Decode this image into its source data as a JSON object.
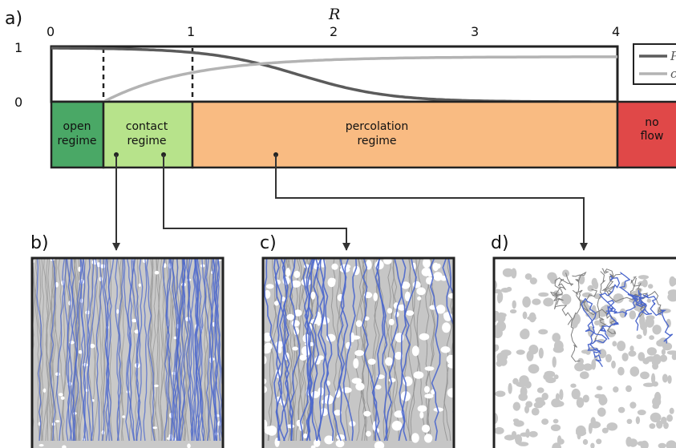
{
  "panel_labels": {
    "a": "a)",
    "b": "b)",
    "c": "c)",
    "d": "d)"
  },
  "axis": {
    "variable": "R",
    "x_ticks": [
      "0",
      "1",
      "2",
      "3",
      "4"
    ],
    "y_ticks": {
      "top": "1",
      "bottom": "0"
    }
  },
  "regimes": {
    "open": [
      "open",
      "regime"
    ],
    "contact": [
      "contact",
      "regime"
    ],
    "percolation": [
      "percolation",
      "regime"
    ],
    "noflow": [
      "no",
      "flow"
    ]
  },
  "legend": {
    "item1": "P",
    "item2": "c"
  },
  "colors": {
    "open": "#4aa866",
    "contact": "#b7e38b",
    "percolation": "#f9bb82",
    "noflow": "#e04848",
    "curve_dark": "#5b5b5b",
    "curve_light": "#b3b3b3",
    "stream_blue": "#4a66cc",
    "obstacle_gray": "#c6c6c6"
  }
}
